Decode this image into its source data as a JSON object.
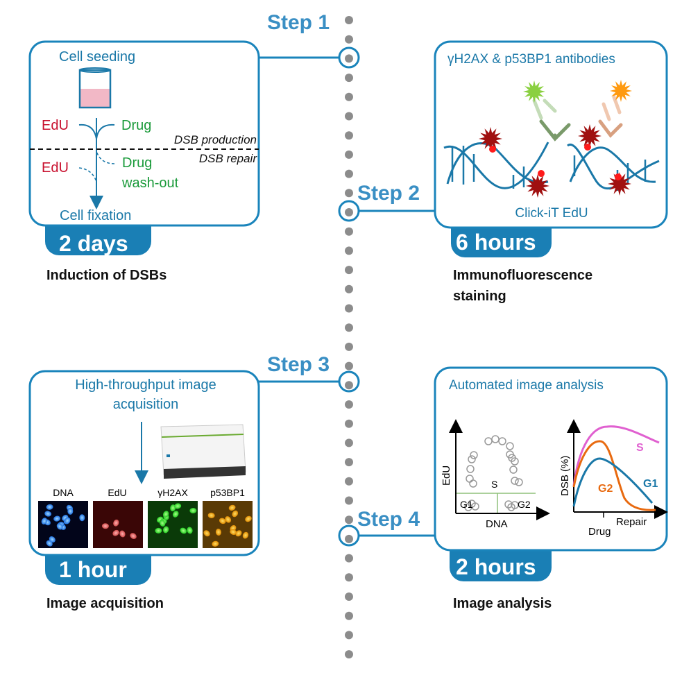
{
  "colors": {
    "accent": "#1a84bb",
    "step_label": "#3a8fc4",
    "timeline_dots": "#8c8c8c",
    "edu": "#c8102e",
    "drug": "#1a9a3a",
    "s_phase": "#e060d0",
    "g2_phase": "#e86a10",
    "g1_phase": "#1a78a8"
  },
  "steps": [
    {
      "label": "Step 1",
      "duration": "2 days",
      "caption": [
        "Induction of DSBs"
      ]
    },
    {
      "label": "Step 2",
      "duration": "6 hours",
      "caption": [
        "Immunofluorescence",
        "staining"
      ]
    },
    {
      "label": "Step 3",
      "duration": "1 hour",
      "caption": [
        "Image acquisition"
      ]
    },
    {
      "label": "Step 4",
      "duration": "2 hours",
      "caption": [
        "Image analysis"
      ]
    }
  ],
  "panel1": {
    "seeding": "Cell seeding",
    "edu1": "EdU",
    "drug1": "Drug",
    "production": "DSB production",
    "repair": "DSB repair",
    "edu2": "EdU",
    "drug2": "Drug",
    "washout": "wash-out",
    "fixation": "Cell fixation"
  },
  "panel2": {
    "title": "γH2AX & p53BP1 antibodies",
    "bottom": "Click-iT EdU"
  },
  "panel3": {
    "title_line1": "High-throughput image",
    "title_line2": "acquisition",
    "channels": [
      "DNA",
      "EdU",
      "γH2AX",
      "p53BP1"
    ]
  },
  "panel4": {
    "title": "Automated image analysis",
    "left_ylabel": "EdU",
    "left_xlabel": "DNA",
    "s": "S",
    "g1": "G1",
    "g2": "G2",
    "right_ylabel": "DSB (%)",
    "curve_s": "S",
    "curve_g2": "G2",
    "curve_g1": "G1",
    "drug": "Drug",
    "repair": "Repair"
  }
}
